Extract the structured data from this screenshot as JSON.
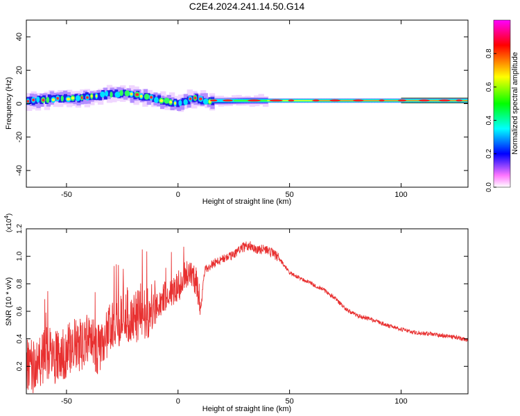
{
  "title": "C2E4.2024.241.14.50.G14",
  "chart_data": [
    {
      "type": "heatmap",
      "xlabel": "Height of straight line (km)",
      "ylabel": "Frequency (Hz)",
      "xlim": [
        -68,
        130
      ],
      "ylim": [
        -50,
        50
      ],
      "xticks": [
        -50,
        0,
        50,
        100
      ],
      "yticks": [
        -40,
        -20,
        0,
        20,
        40
      ],
      "grid": false,
      "ridge_x": [
        -68,
        -60,
        -52,
        -45,
        -38,
        -30,
        -24,
        -18,
        -12,
        -6,
        0,
        4,
        8,
        12,
        20,
        30,
        50,
        80,
        110,
        130
      ],
      "ridge_y": [
        1.5,
        2.5,
        3,
        3.5,
        4.5,
        6,
        6,
        4.5,
        3,
        1.5,
        0,
        2.5,
        3,
        1.5,
        1.5,
        1.8,
        1.8,
        1.8,
        1.8,
        1.8
      ],
      "colorbar": {
        "label": "Normalized spectral amplitude",
        "range": [
          0,
          1
        ],
        "ticks": [
          "0.0",
          "0.2",
          "0.4",
          "0.6",
          "0.8"
        ],
        "colormap": [
          "#ffffff",
          "#ff55ff",
          "#0000ff",
          "#00ffff",
          "#00ff00",
          "#ffff00",
          "#ff0000",
          "#ff00ff"
        ]
      }
    },
    {
      "type": "line",
      "xlabel": "Height of straight line (km)",
      "ylabel": "SNR (10 * v/v)",
      "multiplier_base": "(x10",
      "multiplier_exp": "4",
      "multiplier_close": ")",
      "xlim": [
        -68,
        130
      ],
      "ylim": [
        0,
        1.2
      ],
      "xticks": [
        -50,
        0,
        50,
        100
      ],
      "yticks": [
        "0.2",
        "0.4",
        "0.6",
        "0.8",
        "1.0",
        "1.2"
      ],
      "line_color": "#e83030",
      "x": [
        -68,
        -65,
        -62,
        -58,
        -55,
        -50,
        -47,
        -44,
        -40,
        -36,
        -32,
        -28,
        -24,
        -20,
        -16,
        -12,
        -8,
        -4,
        0,
        2,
        5,
        8,
        10,
        12,
        16,
        20,
        24,
        28,
        32,
        36,
        40,
        45,
        50,
        55,
        60,
        65,
        70,
        75,
        80,
        85,
        90,
        95,
        100,
        105,
        110,
        115,
        120,
        125,
        130
      ],
      "values": [
        0.15,
        0.15,
        0.2,
        0.25,
        0.22,
        0.25,
        0.3,
        0.3,
        0.35,
        0.25,
        0.4,
        0.45,
        0.55,
        0.5,
        0.55,
        0.55,
        0.65,
        0.7,
        0.75,
        0.8,
        0.88,
        0.8,
        0.58,
        0.9,
        0.95,
        0.98,
        1.0,
        1.06,
        1.08,
        1.05,
        1.05,
        0.99,
        0.88,
        0.84,
        0.8,
        0.76,
        0.7,
        0.62,
        0.57,
        0.55,
        0.52,
        0.49,
        0.47,
        0.45,
        0.44,
        0.43,
        0.42,
        0.41,
        0.39
      ]
    }
  ]
}
